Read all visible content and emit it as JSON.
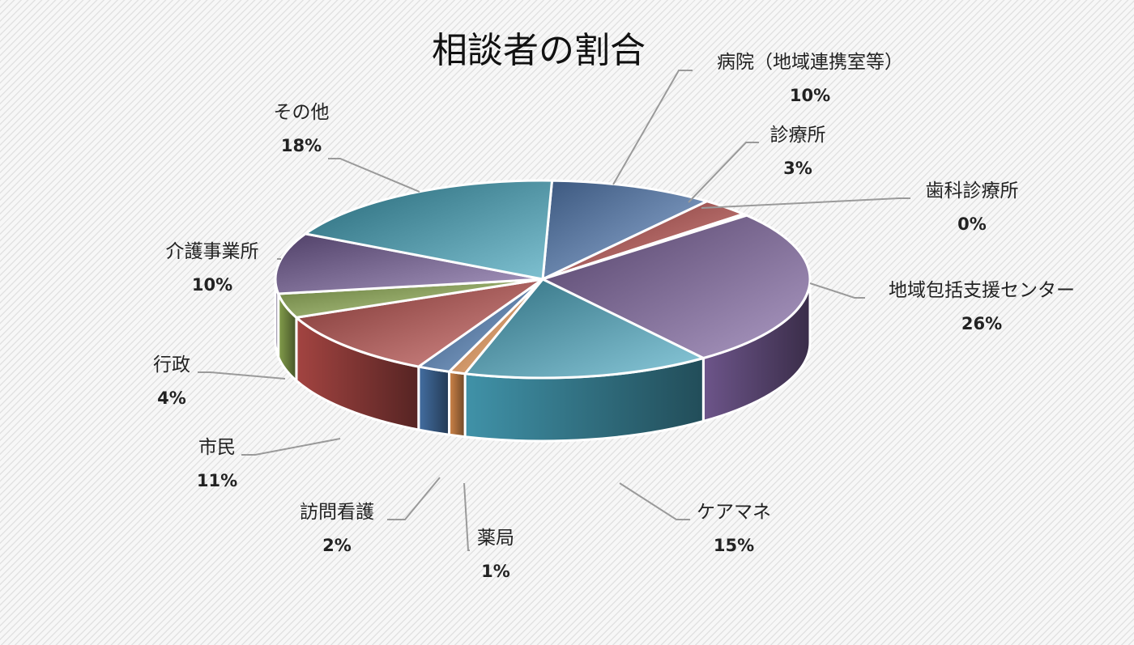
{
  "chart_data": {
    "type": "pie",
    "title": "相談者の割合",
    "slices": [
      {
        "name": "病院（地域連携室等）",
        "pct_label": "10%",
        "value": 10,
        "color": "#5b86c2"
      },
      {
        "name": "診療所",
        "pct_label": "3%",
        "value": 3,
        "color": "#c0504d"
      },
      {
        "name": "歯科診療所",
        "pct_label": "0%",
        "value": 0.3,
        "color": "#9bbb59"
      },
      {
        "name": "地域包括支援センター",
        "pct_label": "26%",
        "value": 26,
        "color": "#8064a2"
      },
      {
        "name": "ケアマネ",
        "pct_label": "15%",
        "value": 15,
        "color": "#4bacc6"
      },
      {
        "name": "薬局",
        "pct_label": "1%",
        "value": 1,
        "color": "#f59d56"
      },
      {
        "name": "訪問看護",
        "pct_label": "2%",
        "value": 2,
        "color": "#4f81bd"
      },
      {
        "name": "市民",
        "pct_label": "11%",
        "value": 11,
        "color": "#c0504d"
      },
      {
        "name": "行政",
        "pct_label": "4%",
        "value": 4,
        "color": "#9bbb59"
      },
      {
        "name": "介護事業所",
        "pct_label": "10%",
        "value": 10,
        "color": "#7b62a0"
      },
      {
        "name": "その他",
        "pct_label": "18%",
        "value": 18,
        "color": "#3aa0b8"
      }
    ],
    "legend": "none"
  }
}
